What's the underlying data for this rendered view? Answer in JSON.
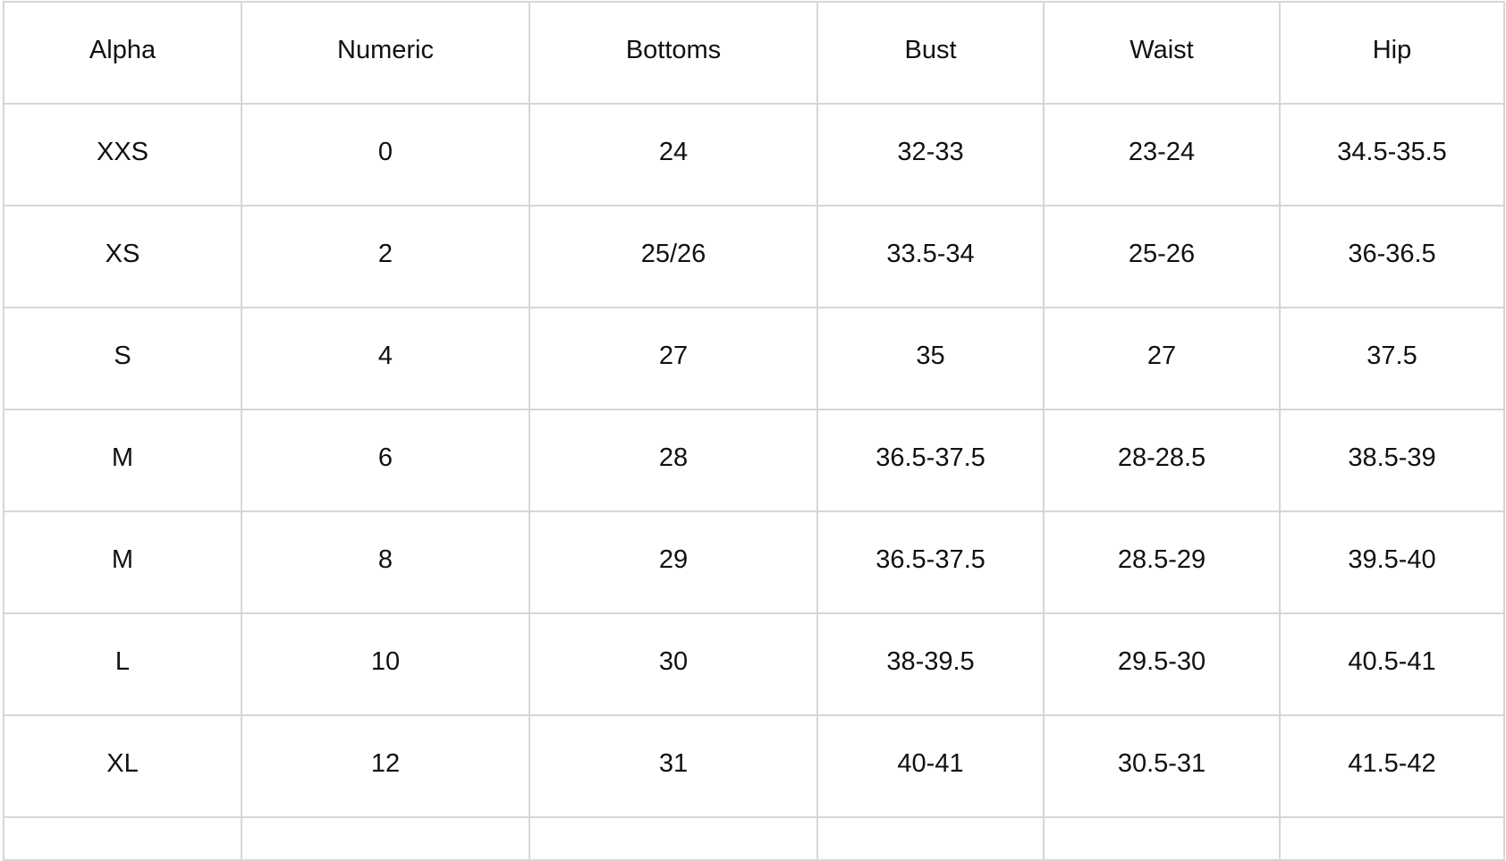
{
  "table": {
    "headers": [
      "Alpha",
      "Numeric",
      "Bottoms",
      "Bust",
      "Waist",
      "Hip"
    ],
    "rows": [
      [
        "XXS",
        "0",
        "24",
        "32-33",
        "23-24",
        "34.5-35.5"
      ],
      [
        "XS",
        "2",
        "25/26",
        "33.5-34",
        "25-26",
        "36-36.5"
      ],
      [
        "S",
        "4",
        "27",
        "35",
        "27",
        "37.5"
      ],
      [
        "M",
        "6",
        "28",
        "36.5-37.5",
        "28-28.5",
        "38.5-39"
      ],
      [
        "M",
        "8",
        "29",
        "36.5-37.5",
        "28.5-29",
        "39.5-40"
      ],
      [
        "L",
        "10",
        "30",
        "38-39.5",
        "29.5-30",
        "40.5-41"
      ],
      [
        "XL",
        "12",
        "31",
        "40-41",
        "30.5-31",
        "41.5-42"
      ]
    ]
  }
}
